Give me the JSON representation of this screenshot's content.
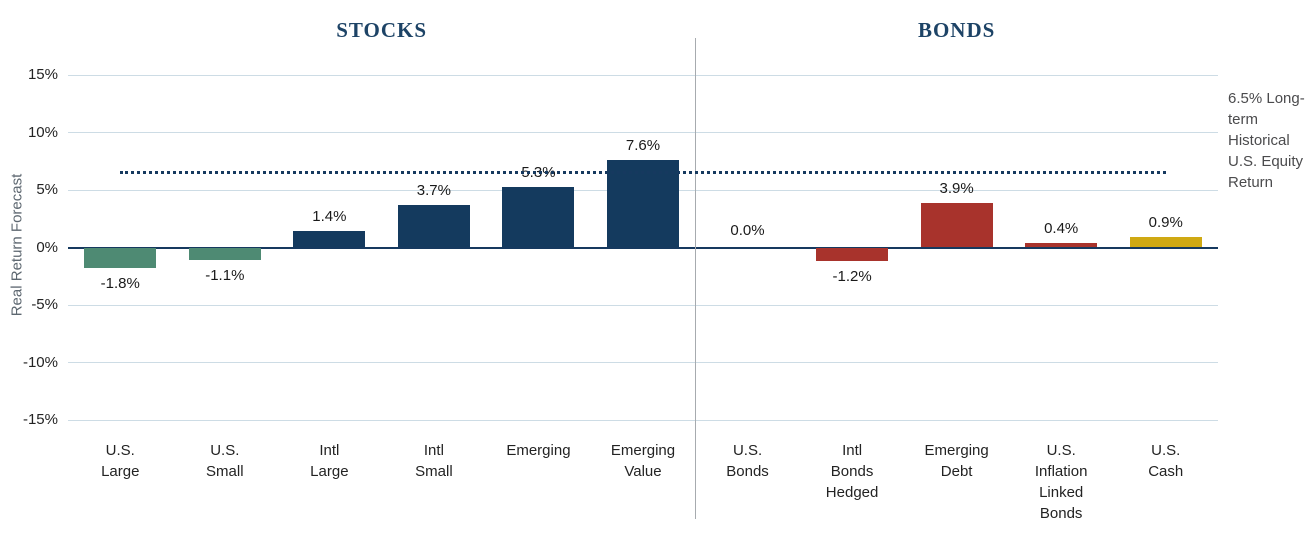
{
  "colors": {
    "teal": "#4E8A73",
    "navy": "#143A5E",
    "red": "#A8332C",
    "gold": "#CFA913",
    "grid": "#CDDCE5",
    "axis": "#16395F",
    "reference": "#16395F",
    "divider": "#A7ABAF",
    "title": "#1D4366",
    "annotation_text": "#4B4B4D",
    "ylabel_text": "#5D6770"
  },
  "chart_data": {
    "type": "bar",
    "title": "",
    "xlabel": "",
    "ylabel": "Real Return Forecast",
    "ylim": [
      -15,
      15
    ],
    "yticks": [
      15,
      10,
      5,
      0,
      -5,
      -10,
      -15
    ],
    "ytick_labels": [
      "15%",
      "10%",
      "5%",
      "0%",
      "-5%",
      "-10%",
      "-15%"
    ],
    "grid": true,
    "legend": "none",
    "reference_line": {
      "value": 6.5,
      "style": "dotted",
      "label": "6.5% Long-term Historical U.S. Equity Return"
    },
    "groups": [
      {
        "title": "STOCKS",
        "bars": [
          {
            "slug": "us-large",
            "category": "U.S. Large",
            "lines": [
              "U.S.",
              "Large"
            ],
            "value": -1.8,
            "label": "-1.8%",
            "color": "teal"
          },
          {
            "slug": "us-small",
            "category": "U.S. Small",
            "lines": [
              "U.S.",
              "Small"
            ],
            "value": -1.1,
            "label": "-1.1%",
            "color": "teal"
          },
          {
            "slug": "intl-large",
            "category": "Intl Large",
            "lines": [
              "Intl",
              "Large"
            ],
            "value": 1.4,
            "label": "1.4%",
            "color": "navy"
          },
          {
            "slug": "intl-small",
            "category": "Intl Small",
            "lines": [
              "Intl",
              "Small"
            ],
            "value": 3.7,
            "label": "3.7%",
            "color": "navy"
          },
          {
            "slug": "emerging",
            "category": "Emerging",
            "lines": [
              "Emerging"
            ],
            "value": 5.3,
            "label": "5.3%",
            "color": "navy"
          },
          {
            "slug": "emerging-value",
            "category": "Emerging Value",
            "lines": [
              "Emerging",
              "Value"
            ],
            "value": 7.6,
            "label": "7.6%",
            "color": "navy"
          }
        ]
      },
      {
        "title": "BONDS",
        "bars": [
          {
            "slug": "us-bonds",
            "category": "U.S. Bonds",
            "lines": [
              "U.S.",
              "Bonds"
            ],
            "value": 0.0,
            "label": "0.0%",
            "color": "navy"
          },
          {
            "slug": "intl-bonds-hedged",
            "category": "Intl Bonds Hedged",
            "lines": [
              "Intl",
              "Bonds",
              "Hedged"
            ],
            "value": -1.2,
            "label": "-1.2%",
            "color": "red"
          },
          {
            "slug": "emerging-debt",
            "category": "Emerging Debt",
            "lines": [
              "Emerging",
              "Debt"
            ],
            "value": 3.9,
            "label": "3.9%",
            "color": "red"
          },
          {
            "slug": "us-inflation-linked-bonds",
            "category": "U.S. Inflation Linked Bonds",
            "lines": [
              "U.S.",
              "Inflation",
              "Linked",
              "Bonds"
            ],
            "value": 0.4,
            "label": "0.4%",
            "color": "red"
          },
          {
            "slug": "us-cash",
            "category": "U.S. Cash",
            "lines": [
              "U.S.",
              "Cash"
            ],
            "value": 0.9,
            "label": "0.9%",
            "color": "gold"
          }
        ]
      }
    ]
  }
}
